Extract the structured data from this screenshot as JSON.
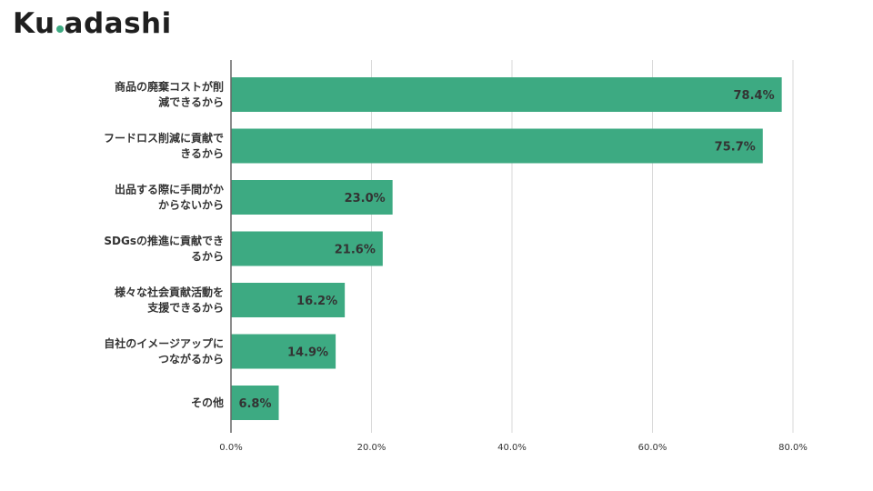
{
  "brand": {
    "logo_pre": "Ku",
    "logo_post": "adashi",
    "accent_color": "#3daa82"
  },
  "chart_data": {
    "type": "bar",
    "orientation": "horizontal",
    "categories": [
      [
        "商品の廃棄コストが削",
        "減できるから"
      ],
      [
        "フードロス削減に貢献で",
        "きるから"
      ],
      [
        "出品する際に手間がか",
        "からないから"
      ],
      [
        "SDGsの推進に貢献でき",
        "るから"
      ],
      [
        "様々な社会貢献活動を",
        "支援できるから"
      ],
      [
        "自社のイメージアップに",
        "つながるから"
      ],
      [
        "その他"
      ]
    ],
    "values": [
      78.4,
      75.7,
      23.0,
      21.6,
      16.2,
      14.9,
      6.8
    ],
    "data_labels": [
      "78.4%",
      "75.7%",
      "23.0%",
      "21.6%",
      "16.2%",
      "14.9%",
      "6.8%"
    ],
    "xticks": [
      "0.0%",
      "20.0%",
      "40.0%",
      "60.0%",
      "80.0%"
    ],
    "xlim": [
      0,
      80
    ],
    "grid": true,
    "bar_color": "#3daa82",
    "grid_color": "#d9d9d9",
    "axis_color": "#666666"
  }
}
